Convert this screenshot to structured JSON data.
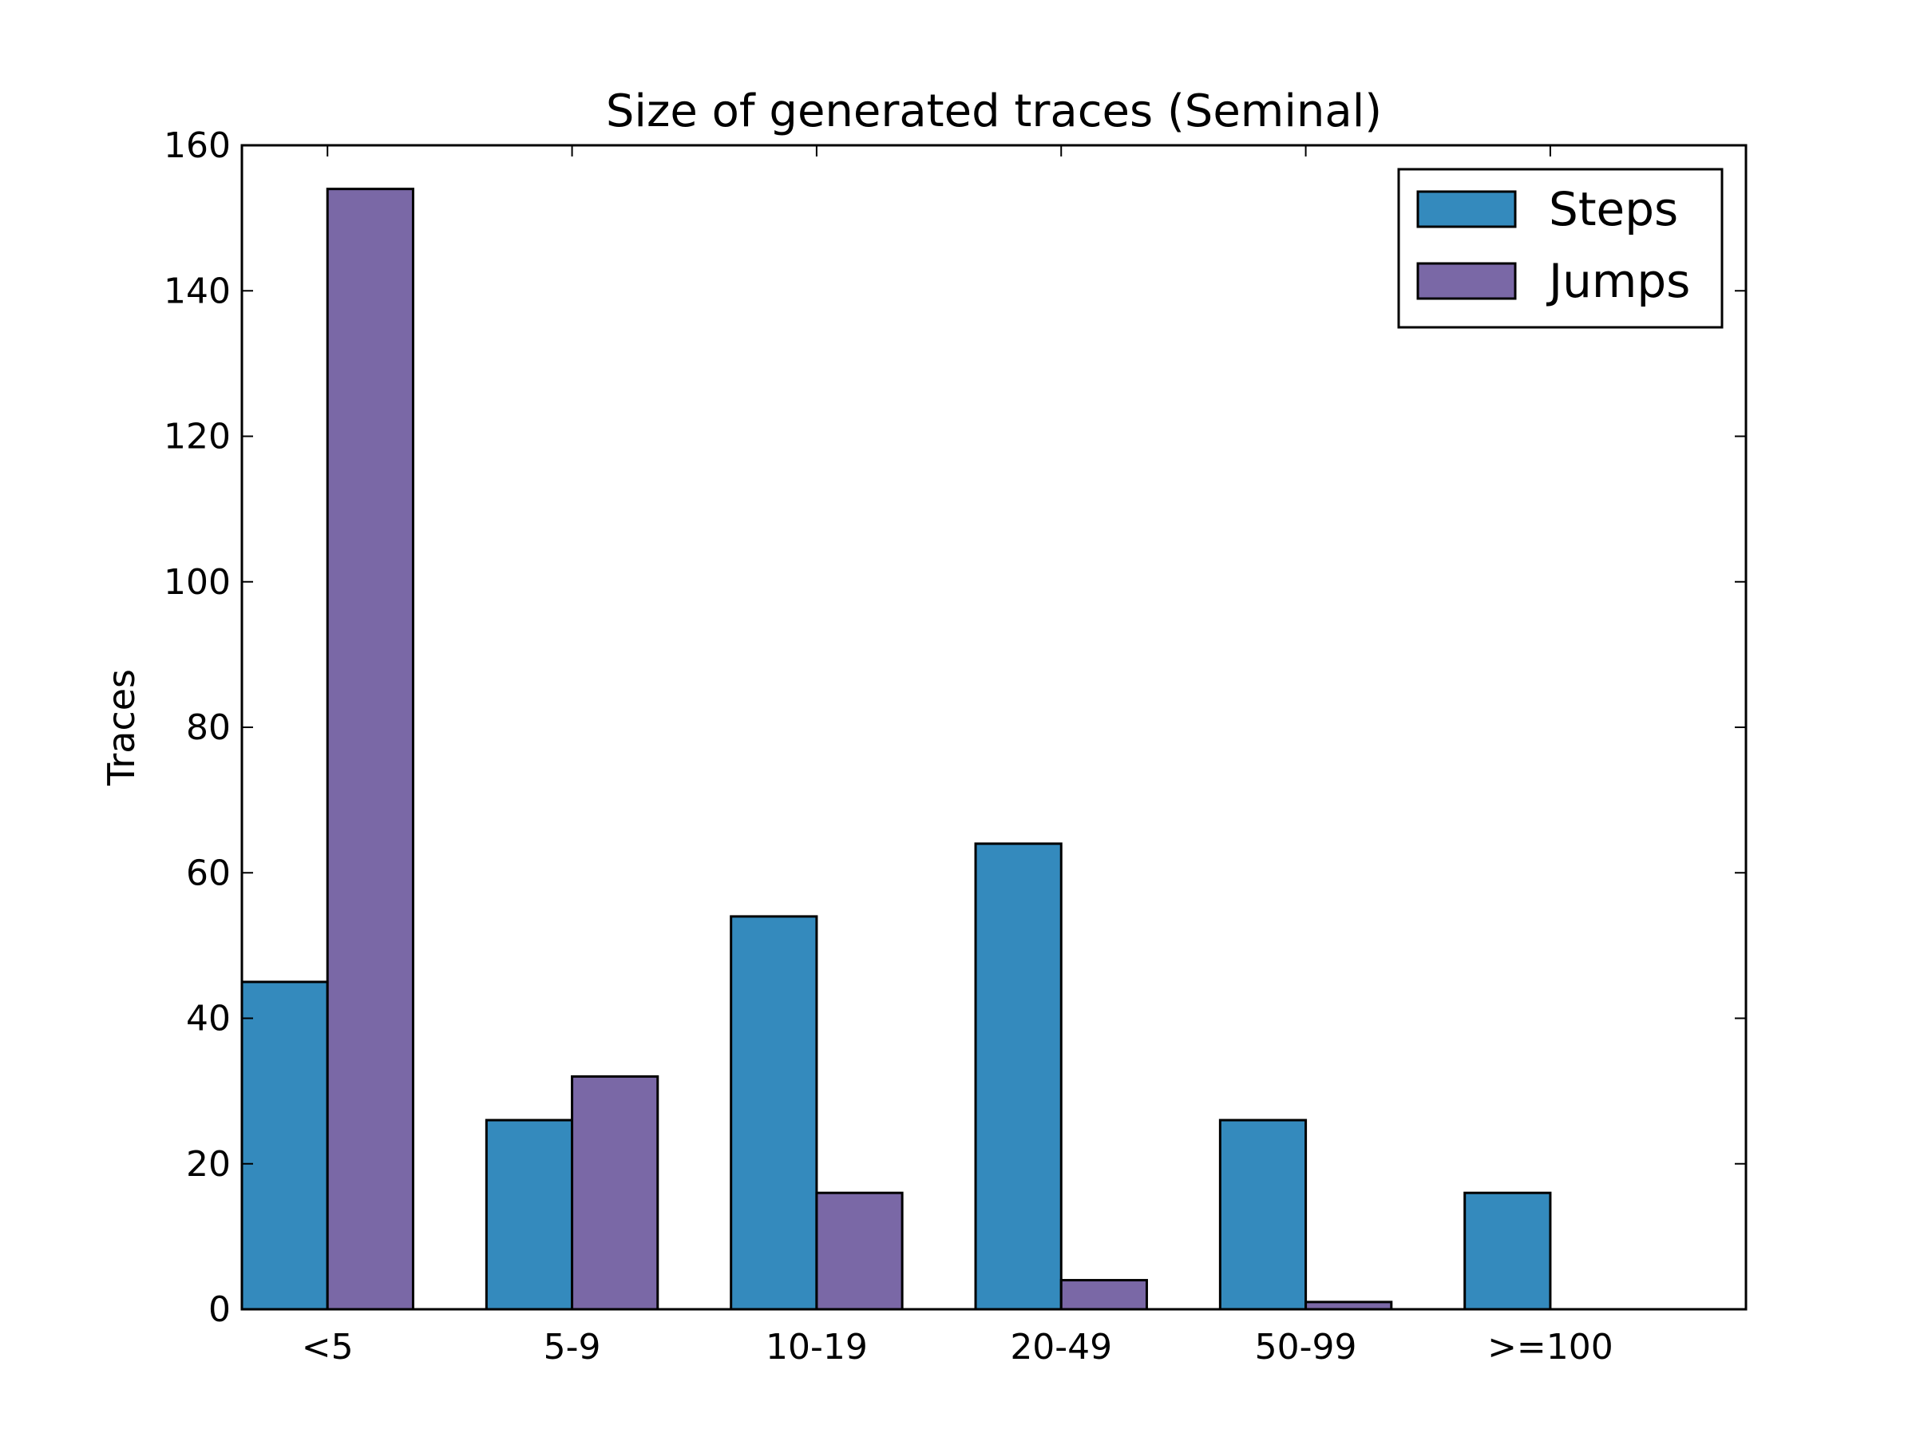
{
  "chart_data": {
    "type": "bar",
    "title": "Size of generated traces (Seminal)",
    "xlabel": "",
    "ylabel": "Traces",
    "categories": [
      "<5",
      "5-9",
      "10-19",
      "20-49",
      "50-99",
      ">=100"
    ],
    "series": [
      {
        "name": "Steps",
        "values": [
          45,
          26,
          54,
          64,
          26,
          16
        ],
        "color": "#348abd"
      },
      {
        "name": "Jumps",
        "values": [
          154,
          32,
          16,
          4,
          1,
          0
        ],
        "color": "#7a68a6"
      }
    ],
    "ylim": [
      0,
      160
    ],
    "yticks": [
      0,
      20,
      40,
      60,
      80,
      100,
      120,
      140,
      160
    ],
    "grid": false,
    "legend_position": "top-right"
  }
}
